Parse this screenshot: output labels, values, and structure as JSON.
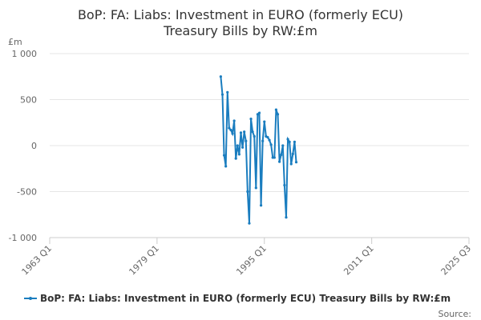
{
  "chart_data": {
    "type": "line",
    "title": [
      "BoP: FA: Liabs: Investment in EURO (formerly ECU)",
      "Treasury Bills by RW:£m"
    ],
    "y_unit": "£m",
    "source": "Source:",
    "x": [
      "1988 Q3",
      "1988 Q4",
      "1989 Q1",
      "1989 Q2",
      "1989 Q3",
      "1989 Q4",
      "1990 Q1",
      "1990 Q2",
      "1990 Q3",
      "1990 Q4",
      "1991 Q1",
      "1991 Q2",
      "1991 Q3",
      "1991 Q4",
      "1992 Q1",
      "1992 Q2",
      "1992 Q3",
      "1992 Q4",
      "1993 Q1",
      "1993 Q2",
      "1993 Q3",
      "1993 Q4",
      "1994 Q1",
      "1994 Q2",
      "1994 Q3",
      "1994 Q4",
      "1995 Q1",
      "1995 Q2",
      "1995 Q3",
      "1995 Q4",
      "1996 Q1",
      "1996 Q2",
      "1996 Q3",
      "1996 Q4",
      "1997 Q1",
      "1997 Q2",
      "1997 Q3",
      "1997 Q4",
      "1998 Q1",
      "1998 Q2",
      "1998 Q3",
      "1998 Q4",
      "1999 Q1",
      "1999 Q2",
      "1999 Q3",
      "1999 Q4"
    ],
    "series": [
      {
        "name": "BoP: FA: Liabs: Investment in EURO (formerly ECU) Treasury Bills by RW:£m",
        "color": "#1a7dbf",
        "values": [
          750,
          555,
          -105,
          -225,
          580,
          190,
          170,
          130,
          270,
          -140,
          0,
          -95,
          140,
          -20,
          150,
          50,
          -500,
          -845,
          290,
          150,
          100,
          -460,
          340,
          355,
          -650,
          50,
          260,
          100,
          90,
          60,
          10,
          -130,
          -130,
          390,
          340,
          -175,
          -100,
          0,
          -430,
          -780,
          70,
          40,
          -200,
          -90,
          40,
          -180
        ]
      }
    ],
    "xlim": [
      "1963 Q1",
      "2025 Q3"
    ],
    "xticks": [
      "1963 Q1",
      "1979 Q1",
      "1995 Q1",
      "2011 Q1",
      "2025 Q3"
    ],
    "ylim": [
      -1000,
      1000
    ],
    "yticks": [
      {
        "value": -1000,
        "label": "-1 000"
      },
      -500,
      0,
      500,
      {
        "value": 1000,
        "label": "1 000"
      }
    ],
    "grid": true
  }
}
